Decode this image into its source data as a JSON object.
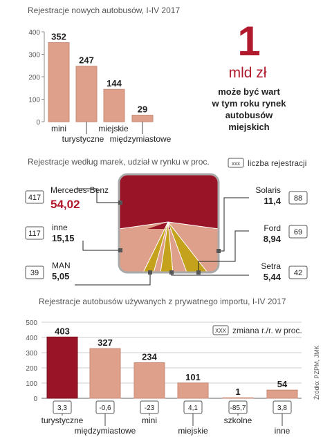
{
  "colors": {
    "bar": "#dea08a",
    "bar_dark": "#9a1428",
    "gold": "#c5a21c",
    "accent_red": "#b01a2c",
    "grid": "#999999",
    "text": "#222222",
    "muted": "#555555"
  },
  "chart_data": [
    {
      "type": "bar",
      "title": "Rejestracje nowych autobusów, I-IV 2017",
      "categories": [
        "mini",
        "turystyczne",
        "miejskie",
        "międzymiastowe"
      ],
      "values": [
        352,
        247,
        144,
        29
      ],
      "ylim": [
        0,
        400
      ],
      "yticks": [
        0,
        100,
        200,
        300,
        400
      ],
      "grid": false
    },
    {
      "type": "pie",
      "title": "Rejestracje według marek, udział w rynku w proc.",
      "legend_box": "xxx",
      "legend_label": "liczba rejestracji",
      "slices": [
        {
          "name": "Mercedes-Benz",
          "share": "54,02",
          "count": "417"
        },
        {
          "name": "Solaris",
          "share": "11,4",
          "count": "88"
        },
        {
          "name": "Ford",
          "share": "8,94",
          "count": "69"
        },
        {
          "name": "Setra",
          "share": "5,44",
          "count": "42"
        },
        {
          "name": "MAN",
          "share": "5,05",
          "count": "39"
        },
        {
          "name": "inne",
          "share": "15,15",
          "count": "117"
        }
      ]
    },
    {
      "type": "bar",
      "title": "Rejestracje autobusów używanych z prywatnego importu, I-IV 2017",
      "categories": [
        "turystyczne",
        "międzymiastowe",
        "mini",
        "miejskie",
        "szkolne",
        "inne"
      ],
      "values": [
        403,
        327,
        234,
        101,
        1,
        54
      ],
      "changes": [
        "3,3",
        "-0,6",
        "-23",
        "4,1",
        "-85,7",
        "3,8"
      ],
      "legend_box": "XXX",
      "legend_label": "zmiana r./r. w proc.",
      "ylim": [
        0,
        500
      ],
      "yticks": [
        0,
        100,
        200,
        300,
        400,
        500
      ],
      "grid": true
    }
  ],
  "headline": {
    "big_number": "1",
    "unit": "mld zł",
    "lines": [
      "może być wart",
      "w tym roku rynek",
      "autobusów",
      "miejskich"
    ]
  },
  "source": "Źródło: PZPM, JMK"
}
